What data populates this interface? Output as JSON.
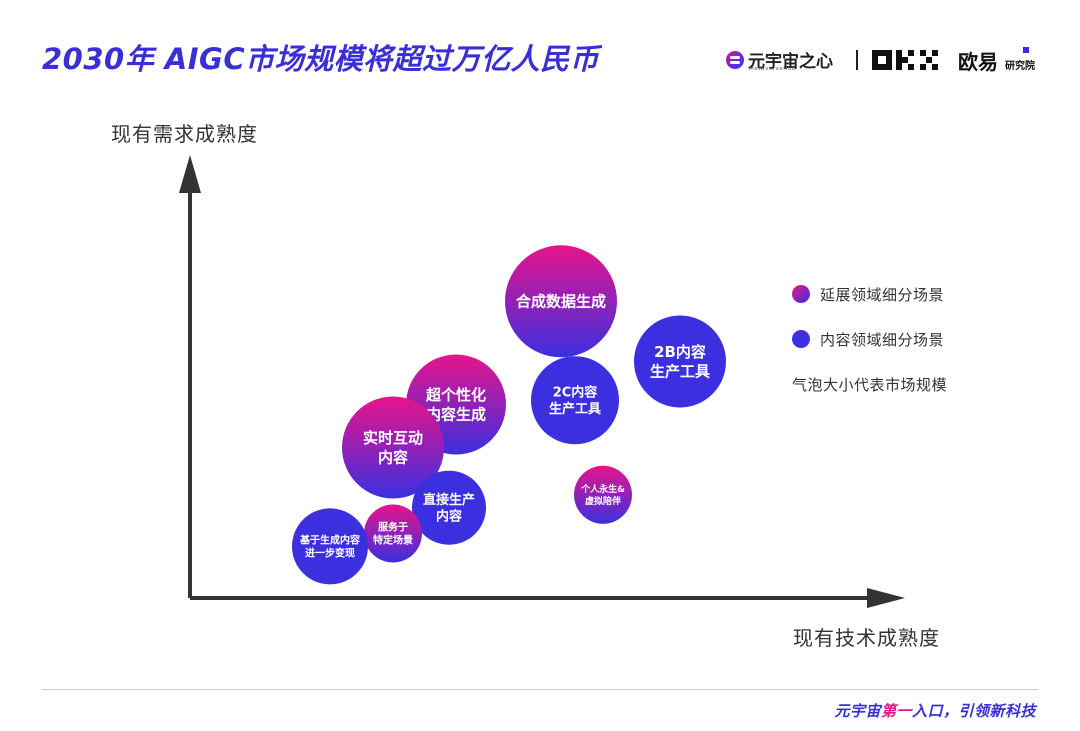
{
  "header": {
    "title": "2030年  AIGC市场规模将超过万亿人民币",
    "brand1_name": "元宇宙之心",
    "brand1_sub": "MetaverseHub",
    "brand2_name": "欧易",
    "brand2_sub": "研究院",
    "logo_icon": "metaversehub-logo-icon",
    "okx_icon": "okx-logo-icon"
  },
  "colors": {
    "title": "#3a2fd6",
    "extended_gradient": [
      "#e7148b",
      "#3b2fe0"
    ],
    "content_color": "#3b2fe0",
    "axis": "#333333"
  },
  "chart_data": {
    "type": "scatter",
    "subtype": "bubble",
    "title": "",
    "xlabel": "现有技术成熟度",
    "ylabel": "现有需求成熟度",
    "axis_ticks": false,
    "grid": false,
    "x_range": [
      0,
      100
    ],
    "y_range": [
      0,
      100
    ],
    "legend_position": "right",
    "size_legend": "气泡大小代表市场规模",
    "series": [
      {
        "name": "延展领域细分场景",
        "color": "gradient"
      },
      {
        "name": "内容领域细分场景",
        "color": "#3b2fe0"
      }
    ],
    "bubbles": [
      {
        "label": [
          "合成数据生成"
        ],
        "series": "延展领域细分场景",
        "x": 53,
        "y": 69,
        "size": 56
      },
      {
        "label": [
          "2B内容",
          "生产工具"
        ],
        "series": "内容领域细分场景",
        "x": 70,
        "y": 55,
        "size": 46
      },
      {
        "label": [
          "2C内容",
          "生产工具"
        ],
        "series": "内容领域细分场景",
        "x": 55,
        "y": 46,
        "size": 44
      },
      {
        "label": [
          "超个性化",
          "内容生成"
        ],
        "series": "延展领域细分场景",
        "x": 38,
        "y": 45,
        "size": 50
      },
      {
        "label": [
          "实时互动",
          "内容"
        ],
        "series": "延展领域细分场景",
        "x": 29,
        "y": 35,
        "size": 51
      },
      {
        "label": [
          "直接生产",
          "内容"
        ],
        "series": "内容领域细分场景",
        "x": 37,
        "y": 21,
        "size": 37
      },
      {
        "label": [
          "个人永生&",
          "虚拟陪伴"
        ],
        "series": "延展领域细分场景",
        "x": 59,
        "y": 24,
        "size": 29
      },
      {
        "label": [
          "服务于",
          "特定场景"
        ],
        "series": "延展领域细分场景",
        "x": 29,
        "y": 15,
        "size": 29
      },
      {
        "label": [
          "基于生成内容",
          "进一步变现"
        ],
        "series": "内容领域细分场景",
        "x": 20,
        "y": 12,
        "size": 38
      }
    ]
  },
  "footer": {
    "slogan_prefix": "元宇宙",
    "slogan_highlight": "第一",
    "slogan_suffix": "入口，引领新科技"
  }
}
